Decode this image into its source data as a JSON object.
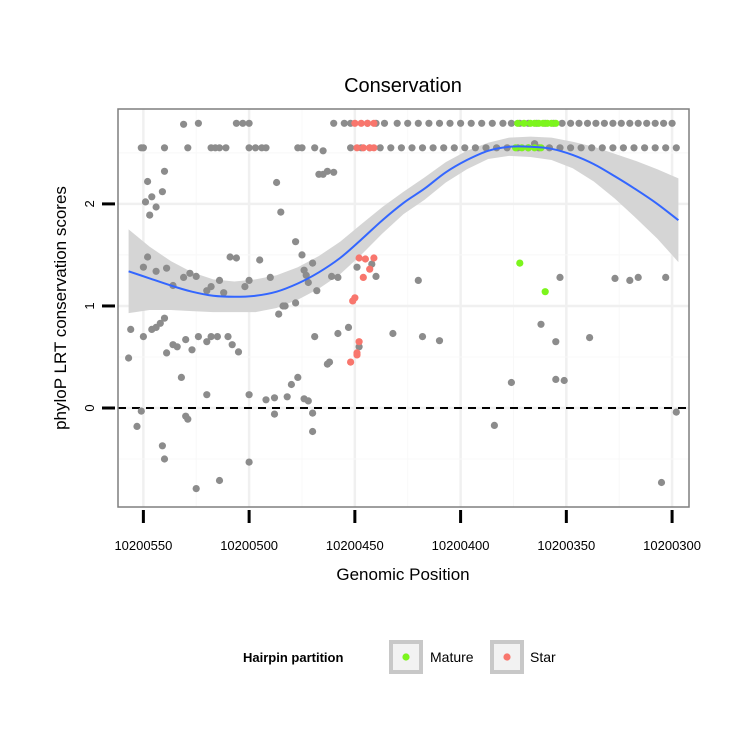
{
  "chart_data": {
    "type": "scatter",
    "title": "Conservation",
    "xlabel": "Genomic Position",
    "ylabel": "phyloP LRT conservation scores",
    "x_reversed": true,
    "xlim": [
      10200562,
      10200292
    ],
    "ylim": [
      -0.97,
      2.93
    ],
    "x_ticks": [
      10200550,
      10200500,
      10200450,
      10200400,
      10200350,
      10200300
    ],
    "x_tick_labels": [
      "10200550",
      "10200500",
      "10200450",
      "10200400",
      "10200350",
      "10200300"
    ],
    "y_ticks": [
      0,
      1,
      2
    ],
    "y_tick_labels": [
      "0",
      "1",
      "2"
    ],
    "reference_line": {
      "y": 0,
      "style": "dashed"
    },
    "legend": {
      "title": "Hairpin partition",
      "position": "bottom",
      "entries": [
        {
          "label": "Mature",
          "color": "#7cf51c"
        },
        {
          "label": "Star",
          "color": "#f8766d"
        }
      ]
    },
    "colors": {
      "Other": "#8c8c8c",
      "Mature": "#7cf51c",
      "Star": "#f8766d",
      "smooth": "#3366ff",
      "band": "#d3d3d3"
    },
    "series": [
      {
        "name": "Other",
        "points": [
          [
            10200551,
            2.55
          ],
          [
            10200550,
            2.55
          ],
          [
            10200548,
            2.22
          ],
          [
            10200549,
            2.02
          ],
          [
            10200546,
            2.07
          ],
          [
            10200547,
            1.89
          ],
          [
            10200544,
            1.97
          ],
          [
            10200541,
            2.12
          ],
          [
            10200540,
            2.32
          ],
          [
            10200540,
            2.55
          ],
          [
            10200529,
            2.55
          ],
          [
            10200531,
            2.78
          ],
          [
            10200524,
            2.79
          ],
          [
            10200518,
            2.55
          ],
          [
            10200516,
            2.55
          ],
          [
            10200514,
            2.55
          ],
          [
            10200511,
            2.55
          ],
          [
            10200506,
            2.79
          ],
          [
            10200503,
            2.79
          ],
          [
            10200500,
            2.79
          ],
          [
            10200500,
            2.55
          ],
          [
            10200497,
            2.55
          ],
          [
            10200494,
            2.55
          ],
          [
            10200492,
            2.55
          ],
          [
            10200487,
            2.21
          ],
          [
            10200485,
            1.92
          ],
          [
            10200477,
            2.55
          ],
          [
            10200475,
            2.55
          ],
          [
            10200469,
            2.55
          ],
          [
            10200467,
            2.29
          ],
          [
            10200465,
            2.29
          ],
          [
            10200463,
            2.32
          ],
          [
            10200460,
            2.31
          ],
          [
            10200460,
            2.79
          ],
          [
            10200465,
            2.52
          ],
          [
            10200548,
            1.48
          ],
          [
            10200550,
            1.38
          ],
          [
            10200544,
            1.34
          ],
          [
            10200539,
            1.37
          ],
          [
            10200536,
            1.2
          ],
          [
            10200531,
            1.28
          ],
          [
            10200528,
            1.32
          ],
          [
            10200525,
            1.29
          ],
          [
            10200520,
            1.15
          ],
          [
            10200518,
            1.19
          ],
          [
            10200514,
            1.25
          ],
          [
            10200512,
            1.13
          ],
          [
            10200509,
            1.48
          ],
          [
            10200506,
            1.47
          ],
          [
            10200500,
            1.25
          ],
          [
            10200502,
            1.19
          ],
          [
            10200495,
            1.45
          ],
          [
            10200490,
            1.28
          ],
          [
            10200486,
            0.92
          ],
          [
            10200484,
            1.0
          ],
          [
            10200483,
            1.0
          ],
          [
            10200478,
            1.03
          ],
          [
            10200473,
            1.3
          ],
          [
            10200470,
            1.42
          ],
          [
            10200472,
            1.23
          ],
          [
            10200468,
            1.15
          ],
          [
            10200474,
            1.35
          ],
          [
            10200475,
            1.5
          ],
          [
            10200478,
            1.63
          ],
          [
            10200461,
            1.29
          ],
          [
            10200458,
            1.28
          ],
          [
            10200449,
            1.38
          ],
          [
            10200442,
            1.41
          ],
          [
            10200440,
            1.29
          ],
          [
            10200420,
            1.25
          ],
          [
            10200362,
            0.82
          ],
          [
            10200353,
            1.28
          ],
          [
            10200339,
            0.69
          ],
          [
            10200327,
            1.27
          ],
          [
            10200320,
            1.25
          ],
          [
            10200316,
            1.28
          ],
          [
            10200303,
            1.28
          ],
          [
            10200556,
            0.77
          ],
          [
            10200557,
            0.49
          ],
          [
            10200550,
            0.7
          ],
          [
            10200546,
            0.77
          ],
          [
            10200544,
            0.79
          ],
          [
            10200542,
            0.83
          ],
          [
            10200540,
            0.88
          ],
          [
            10200539,
            0.54
          ],
          [
            10200536,
            0.62
          ],
          [
            10200534,
            0.6
          ],
          [
            10200532,
            0.3
          ],
          [
            10200530,
            0.67
          ],
          [
            10200527,
            0.57
          ],
          [
            10200524,
            0.7
          ],
          [
            10200520,
            0.65
          ],
          [
            10200518,
            0.7
          ],
          [
            10200515,
            0.7
          ],
          [
            10200510,
            0.7
          ],
          [
            10200508,
            0.62
          ],
          [
            10200505,
            0.55
          ],
          [
            10200500,
            0.13
          ],
          [
            10200492,
            0.08
          ],
          [
            10200488,
            0.1
          ],
          [
            10200482,
            0.11
          ],
          [
            10200480,
            0.23
          ],
          [
            10200477,
            0.3
          ],
          [
            10200474,
            0.09
          ],
          [
            10200472,
            0.07
          ],
          [
            10200469,
            0.7
          ],
          [
            10200463,
            0.43
          ],
          [
            10200462,
            0.45
          ],
          [
            10200458,
            0.73
          ],
          [
            10200453,
            0.79
          ],
          [
            10200448,
            0.6
          ],
          [
            10200432,
            0.73
          ],
          [
            10200418,
            0.7
          ],
          [
            10200410,
            0.66
          ],
          [
            10200376,
            0.25
          ],
          [
            10200355,
            0.65
          ],
          [
            10200355,
            0.28
          ],
          [
            10200351,
            0.27
          ],
          [
            10200553,
            -0.18
          ],
          [
            10200551,
            -0.03
          ],
          [
            10200541,
            -0.37
          ],
          [
            10200540,
            -0.5
          ],
          [
            10200530,
            -0.08
          ],
          [
            10200529,
            -0.11
          ],
          [
            10200525,
            -0.79
          ],
          [
            10200520,
            0.13
          ],
          [
            10200514,
            -0.71
          ],
          [
            10200500,
            -0.53
          ],
          [
            10200488,
            -0.06
          ],
          [
            10200470,
            -0.23
          ],
          [
            10200470,
            -0.05
          ],
          [
            10200384,
            -0.17
          ],
          [
            10200305,
            -0.73
          ],
          [
            10200298,
            -0.04
          ],
          [
            10200455,
            2.79
          ],
          [
            10200452,
            2.79
          ],
          [
            10200444,
            2.79
          ],
          [
            10200440,
            2.79
          ],
          [
            10200436,
            2.79
          ],
          [
            10200430,
            2.79
          ],
          [
            10200425,
            2.79
          ],
          [
            10200420,
            2.79
          ],
          [
            10200415,
            2.79
          ],
          [
            10200410,
            2.79
          ],
          [
            10200405,
            2.79
          ],
          [
            10200400,
            2.79
          ],
          [
            10200395,
            2.79
          ],
          [
            10200390,
            2.79
          ],
          [
            10200385,
            2.79
          ],
          [
            10200380,
            2.79
          ],
          [
            10200376,
            2.79
          ],
          [
            10200372,
            2.79
          ],
          [
            10200368,
            2.79
          ],
          [
            10200364,
            2.79
          ],
          [
            10200360,
            2.79
          ],
          [
            10200356,
            2.79
          ],
          [
            10200352,
            2.79
          ],
          [
            10200348,
            2.79
          ],
          [
            10200344,
            2.79
          ],
          [
            10200340,
            2.79
          ],
          [
            10200336,
            2.79
          ],
          [
            10200332,
            2.79
          ],
          [
            10200328,
            2.79
          ],
          [
            10200324,
            2.79
          ],
          [
            10200320,
            2.79
          ],
          [
            10200316,
            2.79
          ],
          [
            10200312,
            2.79
          ],
          [
            10200308,
            2.79
          ],
          [
            10200304,
            2.79
          ],
          [
            10200300,
            2.79
          ],
          [
            10200452,
            2.55
          ],
          [
            10200447,
            2.55
          ],
          [
            10200443,
            2.55
          ],
          [
            10200438,
            2.55
          ],
          [
            10200433,
            2.55
          ],
          [
            10200428,
            2.55
          ],
          [
            10200423,
            2.55
          ],
          [
            10200418,
            2.55
          ],
          [
            10200413,
            2.55
          ],
          [
            10200408,
            2.55
          ],
          [
            10200403,
            2.55
          ],
          [
            10200398,
            2.55
          ],
          [
            10200393,
            2.55
          ],
          [
            10200388,
            2.55
          ],
          [
            10200383,
            2.55
          ],
          [
            10200378,
            2.55
          ],
          [
            10200373,
            2.55
          ],
          [
            10200368,
            2.55
          ],
          [
            10200363,
            2.55
          ],
          [
            10200358,
            2.55
          ],
          [
            10200353,
            2.55
          ],
          [
            10200348,
            2.55
          ],
          [
            10200343,
            2.55
          ],
          [
            10200338,
            2.55
          ],
          [
            10200333,
            2.55
          ],
          [
            10200328,
            2.55
          ],
          [
            10200323,
            2.55
          ],
          [
            10200318,
            2.55
          ],
          [
            10200313,
            2.55
          ],
          [
            10200308,
            2.55
          ],
          [
            10200303,
            2.55
          ],
          [
            10200298,
            2.55
          ],
          [
            10200365,
            2.59
          ]
        ]
      },
      {
        "name": "Mature",
        "points": [
          [
            10200373,
            2.79
          ],
          [
            10200370,
            2.79
          ],
          [
            10200367,
            2.79
          ],
          [
            10200365,
            2.79
          ],
          [
            10200363,
            2.79
          ],
          [
            10200361,
            2.79
          ],
          [
            10200359,
            2.79
          ],
          [
            10200357,
            2.79
          ],
          [
            10200355,
            2.79
          ],
          [
            10200374,
            2.55
          ],
          [
            10200371,
            2.55
          ],
          [
            10200368,
            2.55
          ],
          [
            10200365,
            2.55
          ],
          [
            10200362,
            2.55
          ],
          [
            10200372,
            1.42
          ],
          [
            10200360,
            1.14
          ]
        ]
      },
      {
        "name": "Star",
        "points": [
          [
            10200450,
            2.79
          ],
          [
            10200447,
            2.79
          ],
          [
            10200444,
            2.79
          ],
          [
            10200441,
            2.79
          ],
          [
            10200449,
            2.55
          ],
          [
            10200446,
            2.55
          ],
          [
            10200443,
            2.55
          ],
          [
            10200441,
            2.55
          ],
          [
            10200448,
            1.47
          ],
          [
            10200445,
            1.46
          ],
          [
            10200441,
            1.47
          ],
          [
            10200443,
            1.36
          ],
          [
            10200446,
            1.28
          ],
          [
            10200450,
            1.08
          ],
          [
            10200451,
            1.05
          ],
          [
            10200448,
            0.65
          ],
          [
            10200449,
            0.54
          ],
          [
            10200449,
            0.52
          ],
          [
            10200452,
            0.45
          ]
        ]
      }
    ],
    "smooth_line": {
      "x": [
        10200557,
        10200547,
        10200537,
        10200527,
        10200517,
        10200507,
        10200497,
        10200487,
        10200477,
        10200467,
        10200457,
        10200447,
        10200437,
        10200427,
        10200417,
        10200407,
        10200397,
        10200387,
        10200377,
        10200367,
        10200357,
        10200347,
        10200337,
        10200327,
        10200317,
        10200307,
        10200297
      ],
      "y": [
        1.34,
        1.27,
        1.2,
        1.14,
        1.1,
        1.09,
        1.1,
        1.14,
        1.22,
        1.33,
        1.47,
        1.65,
        1.84,
        2.01,
        2.15,
        2.31,
        2.43,
        2.52,
        2.56,
        2.56,
        2.54,
        2.48,
        2.39,
        2.27,
        2.14,
        2.0,
        1.84
      ],
      "band_upper": [
        1.75,
        1.58,
        1.44,
        1.33,
        1.26,
        1.24,
        1.26,
        1.3,
        1.38,
        1.49,
        1.63,
        1.8,
        1.97,
        2.12,
        2.26,
        2.41,
        2.52,
        2.6,
        2.65,
        2.66,
        2.65,
        2.61,
        2.56,
        2.49,
        2.42,
        2.34,
        2.25
      ],
      "band_lower": [
        0.93,
        0.96,
        0.96,
        0.95,
        0.94,
        0.94,
        0.94,
        0.98,
        1.06,
        1.17,
        1.31,
        1.5,
        1.71,
        1.9,
        2.04,
        2.21,
        2.34,
        2.44,
        2.47,
        2.46,
        2.43,
        2.35,
        2.22,
        2.05,
        1.86,
        1.66,
        1.43
      ]
    }
  }
}
